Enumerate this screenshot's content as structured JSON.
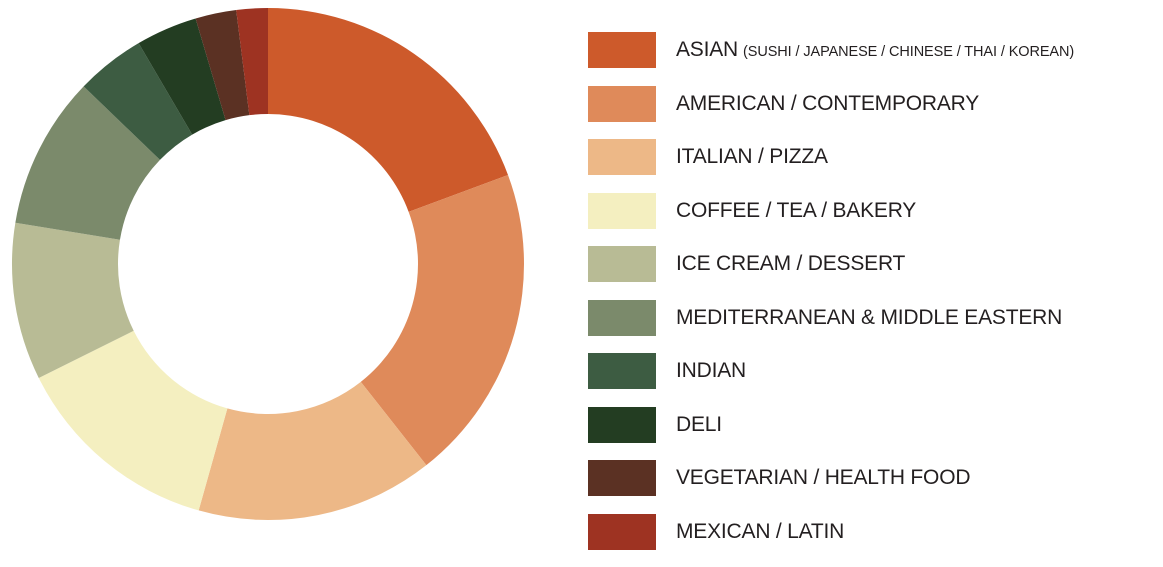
{
  "chart_data": {
    "type": "pie",
    "variant": "donut",
    "title": "",
    "legend_position": "right",
    "categories": [
      {
        "label": "ASIAN",
        "sublabel": "(SUSHI / JAPANESE / CHINESE / THAI / KOREAN)",
        "value": 19.5,
        "color": "#cd5a2b"
      },
      {
        "label": "AMERICAN / CONTEMPORARY",
        "sublabel": "",
        "value": 20.2,
        "color": "#df8a5a"
      },
      {
        "label": "ITALIAN / PIZZA",
        "sublabel": "",
        "value": 15.1,
        "color": "#edb887"
      },
      {
        "label": "COFFEE / TEA / BAKERY",
        "sublabel": "",
        "value": 13.4,
        "color": "#f4efc0"
      },
      {
        "label": "ICE CREAM / DESSERT",
        "sublabel": "",
        "value": 10.0,
        "color": "#b8bb95"
      },
      {
        "label": "MEDITERRANEAN & MIDDLE EASTERN",
        "sublabel": "",
        "value": 9.7,
        "color": "#7b8a6b"
      },
      {
        "label": "INDIAN",
        "sublabel": "",
        "value": 4.4,
        "color": "#3d5c42"
      },
      {
        "label": "DELI",
        "sublabel": "",
        "value": 3.9,
        "color": "#233d22"
      },
      {
        "label": "VEGETARIAN / HEALTH FOOD",
        "sublabel": "",
        "value": 2.6,
        "color": "#5b3123"
      },
      {
        "label": "MEXICAN / LATIN",
        "sublabel": "",
        "value": 2.0,
        "color": "#9e3322"
      }
    ]
  }
}
